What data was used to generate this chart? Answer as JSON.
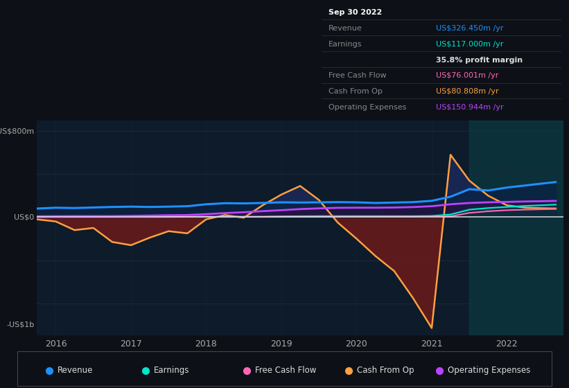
{
  "bg_color": "#0d1117",
  "chart_bg_dark": "#0d1b2a",
  "grid_color": "#1e2d3d",
  "zero_line_color": "#e0e0e0",
  "y_top_label": "US$800m",
  "y_zero_label": "US$0",
  "y_bottom_label": "-US$1b",
  "ylim": [
    -1100,
    900
  ],
  "revenue_color": "#1e90ff",
  "earnings_color": "#00e5cc",
  "fcf_color": "#ff69b4",
  "cashop_color": "#ffa040",
  "opex_color": "#bb44ff",
  "fill_dark_red": "#6b1a1a",
  "fill_dark_blue": "#0a2244",
  "fill_purple": "#2a1040",
  "x_data": [
    2015.75,
    2016.0,
    2016.25,
    2016.5,
    2016.75,
    2017.0,
    2017.25,
    2017.5,
    2017.75,
    2018.0,
    2018.25,
    2018.5,
    2018.75,
    2019.0,
    2019.25,
    2019.5,
    2019.75,
    2020.0,
    2020.25,
    2020.5,
    2020.75,
    2021.0,
    2021.25,
    2021.5,
    2021.75,
    2022.0,
    2022.25,
    2022.5,
    2022.65
  ],
  "revenue": [
    80,
    88,
    85,
    90,
    95,
    98,
    95,
    98,
    102,
    120,
    130,
    128,
    132,
    138,
    136,
    138,
    140,
    138,
    132,
    136,
    140,
    152,
    190,
    260,
    248,
    275,
    295,
    315,
    326
  ],
  "earnings": [
    3,
    4,
    4,
    4,
    4,
    4,
    4,
    4,
    5,
    5,
    5,
    5,
    5,
    8,
    9,
    10,
    10,
    10,
    10,
    10,
    10,
    12,
    25,
    70,
    85,
    95,
    105,
    112,
    117
  ],
  "free_cash_flow": [
    2,
    2,
    2,
    2,
    2,
    2,
    2,
    2,
    3,
    3,
    3,
    3,
    3,
    4,
    4,
    4,
    4,
    4,
    4,
    4,
    4,
    5,
    8,
    40,
    55,
    65,
    70,
    74,
    76
  ],
  "cash_from_op": [
    -20,
    -40,
    -120,
    -100,
    -230,
    -260,
    -190,
    -130,
    -150,
    -20,
    20,
    -5,
    110,
    210,
    290,
    160,
    -50,
    -200,
    -360,
    -500,
    -750,
    -1030,
    580,
    340,
    200,
    110,
    88,
    83,
    81
  ],
  "operating_expenses": [
    8,
    9,
    10,
    10,
    10,
    12,
    15,
    18,
    20,
    28,
    38,
    46,
    56,
    65,
    75,
    82,
    87,
    88,
    88,
    90,
    94,
    102,
    120,
    132,
    138,
    142,
    146,
    149,
    151
  ],
  "legend": [
    {
      "label": "Revenue",
      "color": "#1e90ff"
    },
    {
      "label": "Earnings",
      "color": "#00e5cc"
    },
    {
      "label": "Free Cash Flow",
      "color": "#ff69b4"
    },
    {
      "label": "Cash From Op",
      "color": "#ffa040"
    },
    {
      "label": "Operating Expenses",
      "color": "#bb44ff"
    }
  ],
  "info_rows": [
    {
      "label": "Sep 30 2022",
      "value": "",
      "label_color": "#ffffff",
      "value_color": "#ffffff",
      "bold": true
    },
    {
      "label": "Revenue",
      "value": "US$326.450m /yr",
      "label_color": "#888888",
      "value_color": "#1e90ff",
      "bold": false
    },
    {
      "label": "Earnings",
      "value": "US$117.000m /yr",
      "label_color": "#888888",
      "value_color": "#00e5cc",
      "bold": false
    },
    {
      "label": "",
      "value": "35.8% profit margin",
      "label_color": "#888888",
      "value_color": "#dddddd",
      "bold": true
    },
    {
      "label": "Free Cash Flow",
      "value": "US$76.001m /yr",
      "label_color": "#888888",
      "value_color": "#ff69b4",
      "bold": false
    },
    {
      "label": "Cash From Op",
      "value": "US$80.808m /yr",
      "label_color": "#888888",
      "value_color": "#ffa040",
      "bold": false
    },
    {
      "label": "Operating Expenses",
      "value": "US$150.944m /yr",
      "label_color": "#888888",
      "value_color": "#bb44ff",
      "bold": false
    }
  ]
}
